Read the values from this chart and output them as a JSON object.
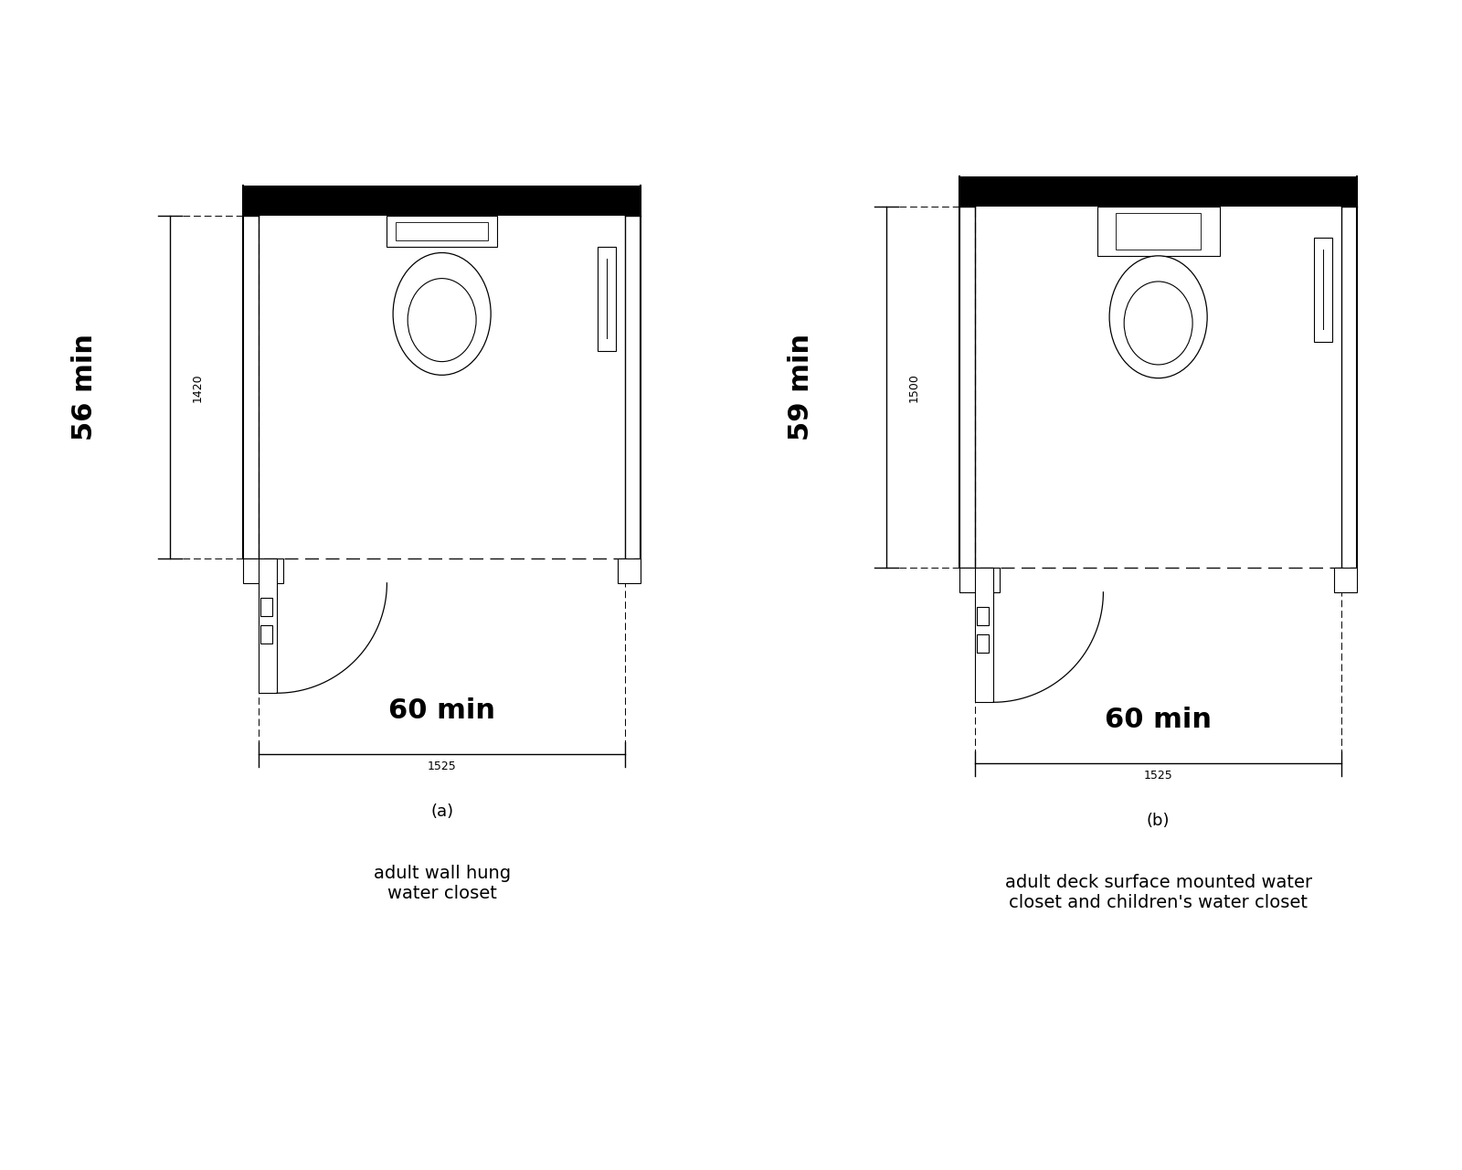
{
  "fig_width": 16.0,
  "fig_height": 12.8,
  "bg_color": "#ffffff",
  "line_color": "#000000",
  "diagram_a": {
    "label": "(a)",
    "subtitle_line1": "adult wall hung",
    "subtitle_line2": "water closet",
    "depth_in": "56 min",
    "depth_mm": "1420",
    "width_in": "60 min",
    "width_mm": "1525",
    "is_wall_hung": true
  },
  "diagram_b": {
    "label": "(b)",
    "subtitle_line1": "adult deck surface mounted water",
    "subtitle_line2": "closet and children's water closet",
    "depth_in": "59 min",
    "depth_mm": "1500",
    "width_in": "60 min",
    "width_mm": "1525",
    "is_wall_hung": false
  }
}
